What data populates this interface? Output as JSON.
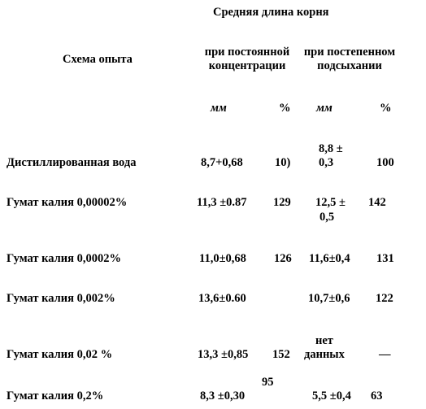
{
  "table": {
    "header": {
      "main_title": "Средняя длина корня",
      "scheme_label": "Схема опыта",
      "col_constant": [
        "при постоянной",
        "концентрации"
      ],
      "col_gradual": [
        "при постепенном",
        "подсыхании"
      ],
      "unit_mm": "мм",
      "unit_percent": "%"
    },
    "rows": [
      {
        "name": "Дистиллированная вода",
        "c_mm": "8,7+0,68",
        "c_pct": "10)",
        "g_mm": [
          "8,8 ±",
          "0,3"
        ],
        "g_pct": "100"
      },
      {
        "name": "Гумат калия 0,00002%",
        "c_mm": "11,3 ±0.87",
        "c_pct": "129",
        "g_mm": [
          "12,5 ±",
          "0,5"
        ],
        "g_pct": "142"
      },
      {
        "name": "Гумат калия 0,0002%",
        "c_mm": "11,0±0,68",
        "c_pct": "126",
        "g_mm": [
          "11,6±0,4"
        ],
        "g_pct": "131"
      },
      {
        "name": "Гумат калия 0,002%",
        "c_mm": "13,6±0.60",
        "c_pct": "",
        "g_mm": [
          "10,7±0,6"
        ],
        "g_pct": "122"
      },
      {
        "name": "Гумат калия 0,02 %",
        "c_mm": "13,3 ±0,85",
        "c_pct": "152",
        "g_mm": [
          "нет",
          "данных"
        ],
        "g_pct": "—"
      },
      {
        "name": "Гумат калия 0,2%",
        "c_mm": "8,3 ±0,30",
        "c_pct": "95",
        "g_mm": [
          "5,5 ±0,4"
        ],
        "g_pct": "63"
      }
    ]
  }
}
